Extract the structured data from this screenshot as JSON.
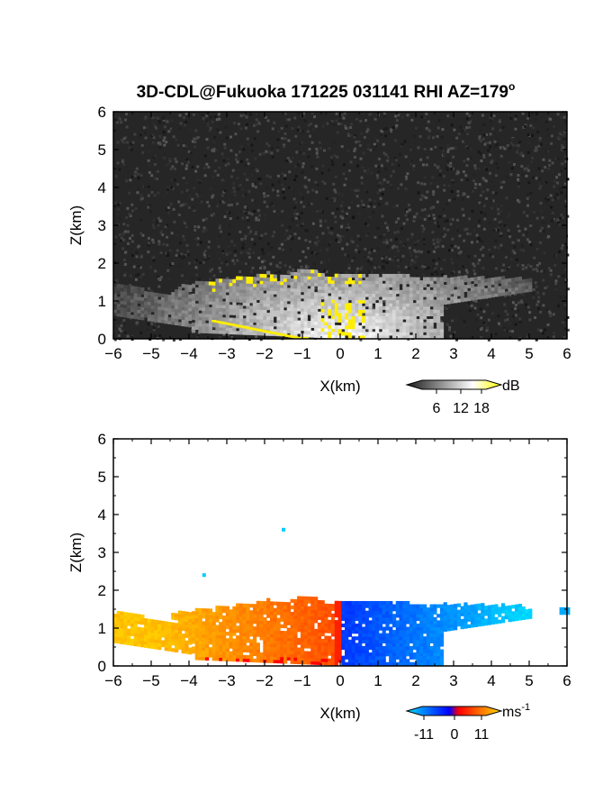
{
  "title": "3D-CDL@Fukuoka 171225 031141 RHI AZ=179",
  "title_superscript": "o",
  "chart_data": [
    {
      "type": "heatmap",
      "panel": "top",
      "variable": "SNR",
      "colormap": "grayscale with yellow high values",
      "xlabel": "X(km)",
      "ylabel": "Z(km)",
      "xlim": [
        -6,
        6
      ],
      "ylim": [
        0,
        6
      ],
      "x_ticks": [
        "-6",
        "-5",
        "-4",
        "-3",
        "-2",
        "-1",
        "0",
        "1",
        "2",
        "3",
        "4",
        "5",
        "6"
      ],
      "y_ticks": [
        "0",
        "1",
        "2",
        "3",
        "4",
        "5",
        "6"
      ],
      "colorbar": {
        "unit": "dB",
        "ticks": [
          "6",
          "12",
          "18"
        ],
        "range": [
          0,
          21
        ],
        "colors": [
          "#202020",
          "#ffffff",
          "#ffff00"
        ]
      },
      "echo_top_km": 1.7,
      "colors": {
        "background_noise": "#222222",
        "echo": "#d8d8d8",
        "strong": "#ffee00"
      }
    },
    {
      "type": "heatmap",
      "panel": "bottom",
      "variable": "Doppler velocity",
      "colormap": "diverging blue-red-yellow",
      "xlabel": "X(km)",
      "ylabel": "Z(km)",
      "xlim": [
        -6,
        6
      ],
      "ylim": [
        0,
        6
      ],
      "x_ticks": [
        "-6",
        "-5",
        "-4",
        "-3",
        "-2",
        "-1",
        "0",
        "1",
        "2",
        "3",
        "4",
        "5",
        "6"
      ],
      "y_ticks": [
        "0",
        "1",
        "2",
        "3",
        "4",
        "5",
        "6"
      ],
      "colorbar": {
        "unit": "ms",
        "unit_superscript": "-1",
        "ticks": [
          "-11",
          "0",
          "11"
        ],
        "range": [
          -11,
          11
        ],
        "colors": [
          "#00ccff",
          "#0000ff",
          "#ff0000",
          "#ffcc00"
        ]
      },
      "velocity_left_ms": 6,
      "velocity_right_ms": -8,
      "isolated_points": [
        {
          "x": -1.5,
          "z": 3.6
        },
        {
          "x": -3.6,
          "z": 2.4
        }
      ]
    }
  ]
}
